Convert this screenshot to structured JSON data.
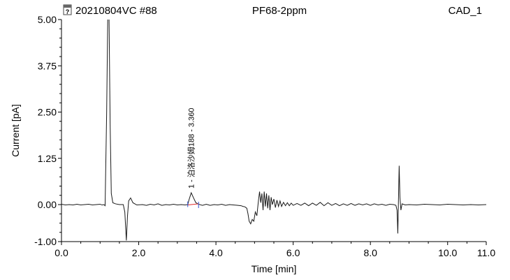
{
  "header": {
    "sample": "20210804VC #88",
    "method": "PF68-2ppm",
    "channel": "CAD_1",
    "icon": "report-icon"
  },
  "chart_data": {
    "type": "line",
    "xlabel": "Time [min]",
    "ylabel": "Current [pA]",
    "xlim": [
      0.0,
      11.0
    ],
    "ylim": [
      -1.0,
      5.0
    ],
    "x_ticks": [
      "0.0",
      "2.0",
      "4.0",
      "6.0",
      "8.0",
      "10.0",
      "11.0"
    ],
    "x_tick_values": [
      0,
      2,
      4,
      6,
      8,
      10,
      11
    ],
    "y_ticks": [
      "5.00",
      "3.75",
      "2.50",
      "1.25",
      "0.00",
      "-1.00"
    ],
    "y_tick_values": [
      5.0,
      3.75,
      2.5,
      1.25,
      0.0,
      -1.0
    ],
    "grid": false,
    "series_color": "#1a1a1a",
    "peak": {
      "label": "1 - 泊洛沙姆188 - 3.360",
      "retention_time": 3.36,
      "apex_height": 0.32,
      "start_time": 3.27,
      "end_time": 3.55,
      "marker_color": "#3050d0",
      "baseline_color": "#e02020"
    },
    "series": [
      {
        "values": [
          [
            0.0,
            0.01
          ],
          [
            0.1,
            -0.01
          ],
          [
            0.2,
            0.0
          ],
          [
            0.3,
            -0.01
          ],
          [
            0.4,
            0.01
          ],
          [
            0.5,
            -0.01
          ],
          [
            0.6,
            0.0
          ],
          [
            0.7,
            0.01
          ],
          [
            0.8,
            -0.01
          ],
          [
            0.9,
            0.0
          ],
          [
            1.0,
            0.01
          ],
          [
            1.05,
            -0.01
          ],
          [
            1.1,
            0.0
          ],
          [
            1.13,
            -0.03
          ],
          [
            1.17,
            2.5
          ],
          [
            1.2,
            5.2
          ],
          [
            1.23,
            5.2
          ],
          [
            1.26,
            2.2
          ],
          [
            1.29,
            0.3
          ],
          [
            1.33,
            0.05
          ],
          [
            1.4,
            0.02
          ],
          [
            1.5,
            0.0
          ],
          [
            1.6,
            0.0
          ],
          [
            1.64,
            -0.2
          ],
          [
            1.68,
            -0.97
          ],
          [
            1.71,
            -0.3
          ],
          [
            1.74,
            0.1
          ],
          [
            1.79,
            0.18
          ],
          [
            1.85,
            0.05
          ],
          [
            1.95,
            -0.01
          ],
          [
            2.1,
            0.0
          ],
          [
            2.2,
            -0.02
          ],
          [
            2.3,
            0.01
          ],
          [
            2.4,
            -0.01
          ],
          [
            2.5,
            0.02
          ],
          [
            2.6,
            -0.02
          ],
          [
            2.7,
            0.0
          ],
          [
            2.8,
            -0.01
          ],
          [
            2.9,
            0.01
          ],
          [
            3.0,
            -0.01
          ],
          [
            3.1,
            0.0
          ],
          [
            3.2,
            -0.01
          ],
          [
            3.27,
            0.0
          ],
          [
            3.3,
            0.12
          ],
          [
            3.36,
            0.32
          ],
          [
            3.42,
            0.18
          ],
          [
            3.48,
            0.05
          ],
          [
            3.55,
            0.01
          ],
          [
            3.65,
            -0.02
          ],
          [
            3.75,
            0.01
          ],
          [
            3.85,
            -0.02
          ],
          [
            3.95,
            0.0
          ],
          [
            4.05,
            -0.01
          ],
          [
            4.15,
            0.01
          ],
          [
            4.25,
            -0.02
          ],
          [
            4.35,
            0.0
          ],
          [
            4.45,
            -0.01
          ],
          [
            4.55,
            -0.02
          ],
          [
            4.65,
            -0.03
          ],
          [
            4.7,
            -0.05
          ],
          [
            4.75,
            -0.06
          ],
          [
            4.8,
            -0.1
          ],
          [
            4.83,
            -0.25
          ],
          [
            4.86,
            -0.45
          ],
          [
            4.9,
            -0.52
          ],
          [
            4.94,
            -0.4
          ],
          [
            4.98,
            -0.45
          ],
          [
            5.02,
            -0.2
          ],
          [
            5.06,
            -0.3
          ],
          [
            5.1,
            0.1
          ],
          [
            5.13,
            0.35
          ],
          [
            5.16,
            0.05
          ],
          [
            5.19,
            0.3
          ],
          [
            5.22,
            -0.15
          ],
          [
            5.25,
            0.35
          ],
          [
            5.28,
            -0.05
          ],
          [
            5.31,
            0.3
          ],
          [
            5.34,
            -0.1
          ],
          [
            5.37,
            0.25
          ],
          [
            5.4,
            -0.15
          ],
          [
            5.43,
            0.2
          ],
          [
            5.46,
            0.0
          ],
          [
            5.5,
            0.15
          ],
          [
            5.54,
            -0.08
          ],
          [
            5.58,
            0.12
          ],
          [
            5.62,
            -0.05
          ],
          [
            5.66,
            0.1
          ],
          [
            5.7,
            -0.05
          ],
          [
            5.75,
            0.06
          ],
          [
            5.8,
            -0.03
          ],
          [
            5.85,
            0.05
          ],
          [
            5.9,
            -0.03
          ],
          [
            5.95,
            0.04
          ],
          [
            6.0,
            -0.02
          ],
          [
            6.1,
            0.03
          ],
          [
            6.2,
            -0.02
          ],
          [
            6.3,
            0.04
          ],
          [
            6.4,
            -0.03
          ],
          [
            6.5,
            0.04
          ],
          [
            6.6,
            -0.02
          ],
          [
            6.7,
            0.06
          ],
          [
            6.8,
            -0.03
          ],
          [
            6.9,
            0.05
          ],
          [
            7.0,
            -0.02
          ],
          [
            7.1,
            0.03
          ],
          [
            7.2,
            -0.03
          ],
          [
            7.3,
            0.02
          ],
          [
            7.4,
            -0.02
          ],
          [
            7.5,
            0.03
          ],
          [
            7.6,
            -0.02
          ],
          [
            7.7,
            0.02
          ],
          [
            7.8,
            -0.01
          ],
          [
            7.9,
            0.02
          ],
          [
            8.0,
            -0.02
          ],
          [
            8.1,
            0.02
          ],
          [
            8.2,
            -0.01
          ],
          [
            8.3,
            0.01
          ],
          [
            8.4,
            -0.02
          ],
          [
            8.5,
            0.01
          ],
          [
            8.6,
            0.0
          ],
          [
            8.66,
            -0.02
          ],
          [
            8.69,
            -0.15
          ],
          [
            8.71,
            -0.78
          ],
          [
            8.73,
            0.3
          ],
          [
            8.745,
            1.05
          ],
          [
            8.765,
            0.2
          ],
          [
            8.79,
            -0.15
          ],
          [
            8.82,
            0.02
          ],
          [
            8.9,
            -0.01
          ],
          [
            9.0,
            0.0
          ],
          [
            9.2,
            -0.01
          ],
          [
            9.4,
            0.01
          ],
          [
            9.6,
            0.0
          ],
          [
            9.8,
            -0.01
          ],
          [
            10.0,
            0.01
          ],
          [
            10.2,
            0.0
          ],
          [
            10.4,
            -0.01
          ],
          [
            10.6,
            0.0
          ],
          [
            10.8,
            -0.01
          ],
          [
            11.0,
            0.0
          ]
        ]
      }
    ]
  }
}
